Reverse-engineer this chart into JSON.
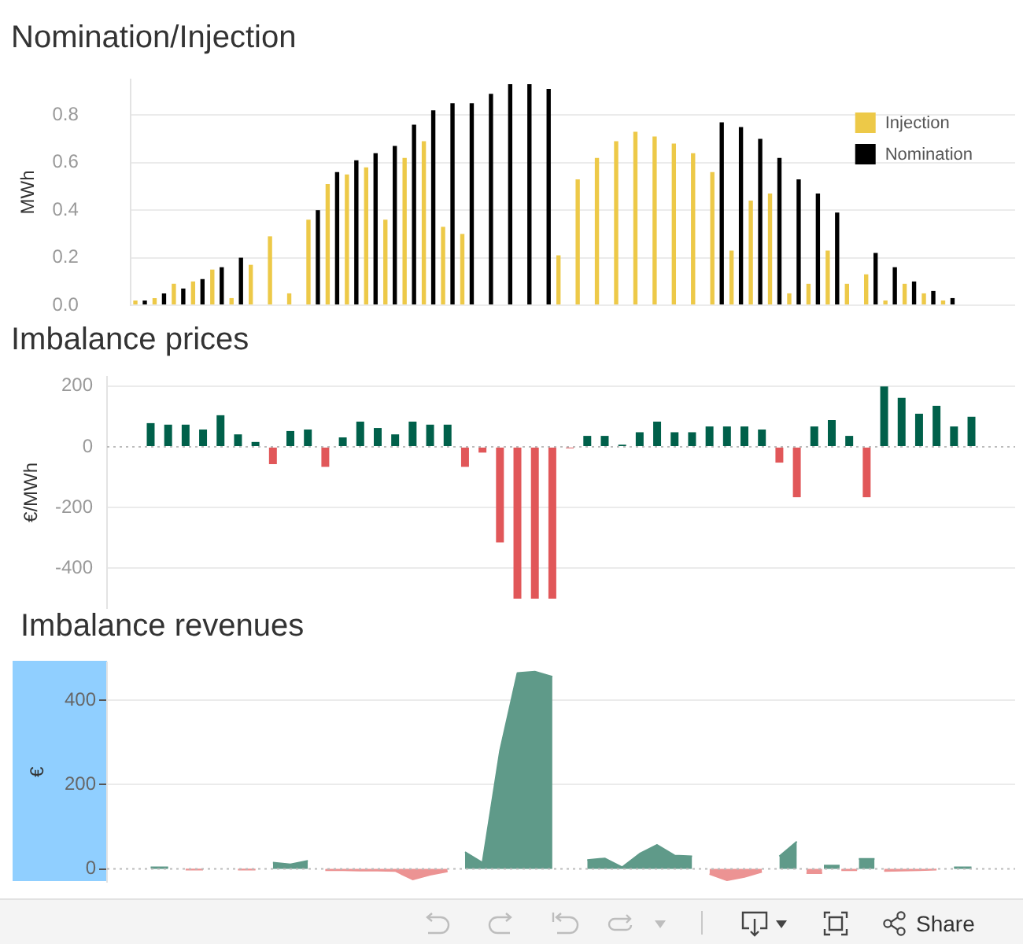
{
  "chart_data": [
    {
      "type": "bar",
      "title": "Nomination/Injection",
      "ylabel": "MWh",
      "categories": [
        null,
        null,
        null,
        null,
        null,
        null,
        null,
        null,
        null,
        null,
        null,
        null,
        null,
        null,
        null,
        null,
        null,
        null,
        null,
        null,
        null,
        null,
        null,
        null,
        null,
        null,
        null,
        null,
        null,
        null,
        null,
        null,
        null,
        null,
        null,
        null,
        null,
        null,
        null,
        null,
        null,
        null,
        null,
        null,
        null,
        null
      ],
      "series": [
        {
          "name": "Injection",
          "color": "#edc948",
          "values": [
            0.02,
            0.03,
            0.09,
            0.1,
            0.15,
            0.03,
            0.17,
            0.29,
            0.05,
            0.36,
            0.51,
            0.55,
            0.58,
            0.36,
            0.62,
            0.69,
            0.33,
            0.3,
            null,
            null,
            null,
            null,
            0.21,
            0.53,
            0.62,
            0.69,
            0.73,
            0.71,
            0.68,
            0.64,
            0.56,
            0.23,
            0.44,
            0.47,
            0.05,
            0.09,
            0.23,
            0.09,
            0.13,
            0.02,
            0.09,
            0.05,
            0.02,
            null,
            null,
            null
          ]
        },
        {
          "name": "Nomination",
          "color": "#000000",
          "values": [
            0.02,
            0.05,
            0.07,
            0.11,
            0.16,
            0.2,
            null,
            null,
            null,
            0.4,
            0.56,
            0.61,
            0.64,
            0.67,
            0.76,
            0.82,
            0.85,
            0.85,
            0.89,
            0.93,
            0.93,
            0.91,
            null,
            null,
            null,
            null,
            null,
            null,
            null,
            null,
            0.77,
            0.75,
            0.7,
            0.62,
            0.53,
            0.47,
            0.39,
            null,
            0.22,
            0.16,
            0.1,
            0.06,
            0.03,
            null,
            null,
            null
          ]
        }
      ],
      "ylim": [
        0,
        0.95
      ],
      "yticks": [
        {
          "value": 0,
          "label": "0.0"
        },
        0.2,
        0.4,
        0.6,
        0.8
      ],
      "grid": "y",
      "legend": "top right"
    },
    {
      "type": "bar",
      "title": "Imbalance prices",
      "ylabel": "€/MWh",
      "categories": [
        null,
        null,
        null,
        null,
        null,
        null,
        null,
        null,
        null,
        null,
        null,
        null,
        null,
        null,
        null,
        null,
        null,
        null,
        null,
        null,
        null,
        null,
        null,
        null,
        null,
        null,
        null,
        null,
        null,
        null,
        null,
        null,
        null,
        null,
        null,
        null,
        null,
        null,
        null,
        null,
        null,
        null,
        null,
        null,
        null,
        null,
        null,
        null,
        null,
        null,
        null,
        null
      ],
      "values": [
        null,
        null,
        78,
        73,
        73,
        57,
        104,
        41,
        16,
        -57,
        52,
        57,
        -66,
        31,
        83,
        62,
        41,
        83,
        73,
        73,
        -66,
        -19,
        -315,
        -500,
        -500,
        -500,
        -5,
        36,
        36,
        7,
        48,
        83,
        48,
        48,
        67,
        67,
        67,
        57,
        -52,
        -166,
        67,
        88,
        36,
        -166,
        199,
        161,
        109,
        135,
        67,
        99,
        null,
        null
      ],
      "colors": [
        null,
        null,
        "#00604a",
        "#00604a",
        "#00604a",
        "#00604a",
        "#00604a",
        "#00604a",
        "#00604a",
        "#e15759",
        "#00604a",
        "#00604a",
        "#e15759",
        "#00604a",
        "#00604a",
        "#00604a",
        "#00604a",
        "#00604a",
        "#00604a",
        "#00604a",
        "#e15759",
        "#e15759",
        "#e15759",
        "#e15759",
        "#e15759",
        "#e15759",
        "#e15759",
        "#00604a",
        "#00604a",
        "#00604a",
        "#00604a",
        "#00604a",
        "#00604a",
        "#00604a",
        "#00604a",
        "#00604a",
        "#00604a",
        "#00604a",
        "#e15759",
        "#e15759",
        "#00604a",
        "#00604a",
        "#00604a",
        "#e15759",
        "#00604a",
        "#00604a",
        "#00604a",
        "#00604a",
        "#00604a",
        "#00604a",
        null,
        null
      ],
      "ylim": [
        -530,
        230
      ],
      "yticks": [
        -400,
        -200,
        0,
        200
      ],
      "grid": "y",
      "ref_lines": [
        {
          "axis": "y",
          "value": 0,
          "color": "#bbbbbb",
          "line_style": "dotted"
        }
      ]
    },
    {
      "type": "area",
      "title": "Imbalance revenues",
      "ylabel": "€",
      "categories": [
        null,
        null,
        null,
        null,
        null,
        null,
        null,
        null,
        null,
        null,
        null,
        null,
        null,
        null,
        null,
        null,
        null,
        null,
        null,
        null,
        null,
        null,
        null,
        null,
        null,
        null,
        null,
        null,
        null,
        null,
        null,
        null,
        null,
        null,
        null,
        null,
        null,
        null,
        null,
        null,
        null,
        null,
        null,
        null,
        null,
        null,
        null,
        null,
        null,
        null,
        null,
        null
      ],
      "series": [
        {
          "color": "#5f9a89",
          "values": [
            null,
            null,
            4,
            4,
            null,
            null,
            null,
            null,
            null,
            15,
            11,
            19,
            null,
            null,
            null,
            null,
            null,
            null,
            null,
            null,
            40,
            15,
            280,
            465,
            468,
            456,
            null,
            21,
            25,
            4,
            36,
            57,
            32,
            30,
            null,
            null,
            null,
            null,
            30,
            65,
            null,
            8,
            null,
            24,
            null,
            null,
            null,
            null,
            4,
            4,
            null,
            null
          ]
        },
        {
          "color": "#ec9393",
          "values": [
            null,
            null,
            null,
            null,
            -2,
            -2,
            null,
            -2,
            -2,
            null,
            null,
            null,
            -3,
            -3,
            -4,
            -4,
            -5,
            -25,
            -14,
            -6,
            null,
            null,
            null,
            null,
            null,
            null,
            null,
            null,
            null,
            null,
            null,
            null,
            null,
            null,
            -12,
            -27,
            -19,
            -7,
            null,
            null,
            -10,
            null,
            -3,
            null,
            -5,
            -4,
            -3,
            -2,
            null,
            null,
            null,
            null
          ]
        }
      ],
      "ylim": [
        -30,
        490
      ],
      "yticks": [
        0,
        200,
        400
      ],
      "grid": "y",
      "ref_lines": [
        {
          "axis": "y",
          "value": 0,
          "color": "#bbbbbb",
          "line_style": "dotted"
        }
      ]
    },
    {
      "type": "other",
      "annotations": [
        "Share"
      ]
    }
  ]
}
